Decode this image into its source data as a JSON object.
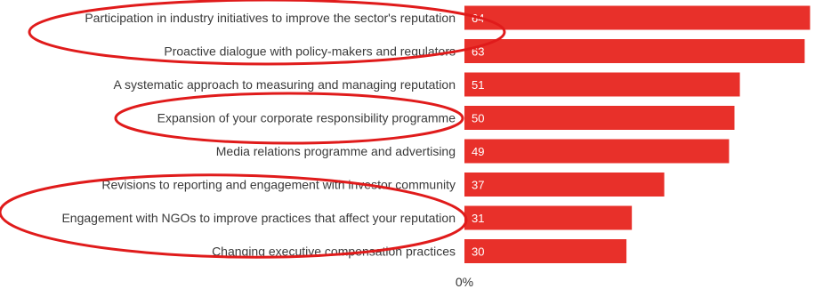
{
  "chart_data": {
    "type": "bar",
    "orientation": "horizontal",
    "categories": [
      "Participation in industry initiatives to improve the sector's reputation",
      "Proactive dialogue with policy-makers and regulators",
      "A systematic approach to measuring and managing reputation",
      "Expansion of your corporate responsibility programme",
      "Media relations programme and advertising",
      "Revisions to reporting and engagement with investor community",
      "Engagement with NGOs to improve practices that affect your reputation",
      "Changing executive compensation practices"
    ],
    "values": [
      64,
      63,
      51,
      50,
      49,
      37,
      31,
      30
    ],
    "value_labels": [
      "64",
      "63",
      "51",
      "50",
      "49",
      "37",
      "31",
      "30"
    ],
    "x_tick_label": "0%",
    "xlim": [
      0,
      65
    ],
    "bar_color": "#e8302a",
    "annotation_color": "#e01b1b",
    "highlighted_categories": [
      0,
      3,
      5,
      6
    ],
    "grid": false,
    "legend": "none"
  }
}
